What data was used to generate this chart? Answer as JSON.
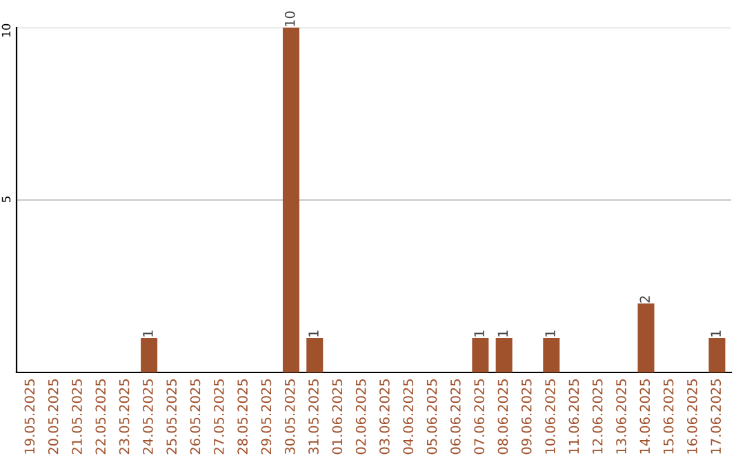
{
  "chart_data": {
    "type": "bar",
    "categories": [
      "19.05.2025",
      "20.05.2025",
      "21.05.2025",
      "22.05.2025",
      "23.05.2025",
      "24.05.2025",
      "25.05.2025",
      "26.05.2025",
      "27.05.2025",
      "28.05.2025",
      "29.05.2025",
      "30.05.2025",
      "31.05.2025",
      "01.06.2025",
      "02.06.2025",
      "03.06.2025",
      "04.06.2025",
      "05.06.2025",
      "06.06.2025",
      "07.06.2025",
      "08.06.2025",
      "09.06.2025",
      "10.06.2025",
      "11.06.2025",
      "12.06.2025",
      "13.06.2025",
      "14.06.2025",
      "15.06.2025",
      "16.06.2025",
      "17.06.2025"
    ],
    "values": [
      0,
      0,
      0,
      0,
      0,
      1,
      0,
      0,
      0,
      0,
      0,
      10,
      1,
      0,
      0,
      0,
      0,
      0,
      0,
      1,
      1,
      0,
      1,
      0,
      0,
      0,
      2,
      0,
      0,
      1
    ],
    "value_labels": [
      null,
      null,
      null,
      null,
      null,
      "1",
      null,
      null,
      null,
      null,
      null,
      "10",
      "1",
      null,
      null,
      null,
      null,
      null,
      null,
      "1",
      "1",
      null,
      "1",
      null,
      null,
      null,
      "2",
      null,
      null,
      "1"
    ],
    "color": "#a0522d",
    "ylim": [
      0,
      10
    ],
    "yticks": [
      5,
      10
    ],
    "grid": "y"
  }
}
